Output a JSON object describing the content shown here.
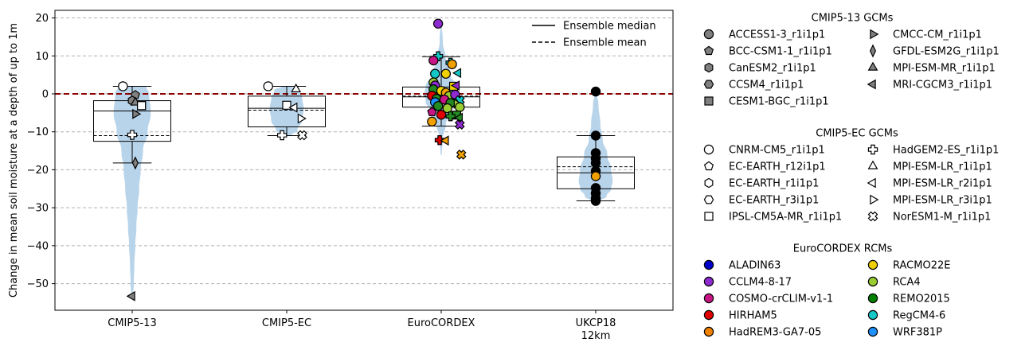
{
  "chart_data": {
    "type": "violin",
    "ylabel": "Change in mean soil moisture at a depth of up to 1m",
    "ylim": [
      -57,
      22
    ],
    "yticks": [
      20,
      10,
      0,
      -10,
      -20,
      -30,
      -40,
      -50
    ],
    "grid": true,
    "zero_line": 0,
    "categories": [
      {
        "label": "CMIP5-13",
        "label2": ""
      },
      {
        "label": "CMIP5-EC",
        "label2": ""
      },
      {
        "label": "EuroCORDEX",
        "label2": ""
      },
      {
        "label": "UKCP18",
        "label2": "12km"
      }
    ],
    "groups": [
      {
        "q1": -12.5,
        "median": -4.5,
        "q3": -1.8,
        "whislo": -18.2,
        "whishi": 2.0,
        "mean": -11.0,
        "violin": [
          [
            2.0,
            0.09
          ],
          [
            0,
            0.11
          ],
          [
            -5,
            0.12
          ],
          [
            -10,
            0.1
          ],
          [
            -15,
            0.07
          ],
          [
            -20,
            0.055
          ],
          [
            -25,
            0.045
          ],
          [
            -30,
            0.035
          ],
          [
            -35,
            0.027
          ],
          [
            -40,
            0.02
          ],
          [
            -45,
            0.014
          ],
          [
            -50,
            0.01
          ],
          [
            -53.5,
            0.005
          ]
        ]
      },
      {
        "q1": -8.7,
        "median": -3.8,
        "q3": -0.6,
        "whislo": -11.0,
        "whishi": 2.0,
        "mean": -4.3,
        "violin": [
          [
            2.0,
            0.03
          ],
          [
            1,
            0.08
          ],
          [
            -1,
            0.1
          ],
          [
            -4,
            0.11
          ],
          [
            -7,
            0.1
          ],
          [
            -9.5,
            0.07
          ],
          [
            -11,
            0.03
          ]
        ]
      },
      {
        "q1": -3.5,
        "median": -0.8,
        "q3": 1.8,
        "whislo": -8.5,
        "whishi": 9.8,
        "mean": -0.6,
        "violin": [
          [
            18.5,
            0.004
          ],
          [
            14,
            0.01
          ],
          [
            9,
            0.03
          ],
          [
            5,
            0.06
          ],
          [
            2,
            0.1
          ],
          [
            0,
            0.11
          ],
          [
            -2,
            0.1
          ],
          [
            -5,
            0.06
          ],
          [
            -8,
            0.03
          ],
          [
            -12,
            0.01
          ],
          [
            -16,
            0.004
          ]
        ]
      },
      {
        "q1": -25.0,
        "median": -20.8,
        "q3": -16.6,
        "whislo": -28.2,
        "whishi": -11.0,
        "mean": -19.2,
        "violin": [
          [
            0.6,
            0.005
          ],
          [
            -3,
            0.018
          ],
          [
            -8,
            0.03
          ],
          [
            -12,
            0.045
          ],
          [
            -16,
            0.075
          ],
          [
            -20,
            0.1
          ],
          [
            -23,
            0.11
          ],
          [
            -25,
            0.1
          ],
          [
            -27,
            0.07
          ],
          [
            -28.2,
            0.03
          ]
        ]
      }
    ],
    "points": [
      {
        "g": 0,
        "x": -0.06,
        "y": 2.0,
        "m": "circle",
        "c": "#ffffff"
      },
      {
        "g": 0,
        "x": 0.02,
        "y": -0.3,
        "m": "pentagon",
        "c": "#808080"
      },
      {
        "g": 0,
        "x": 0.0,
        "y": -1.8,
        "m": "hexagon",
        "c": "#808080"
      },
      {
        "g": 0,
        "x": 0.02,
        "y": -2.3,
        "m": "triangle-up",
        "c": "#808080"
      },
      {
        "g": 0,
        "x": 0.06,
        "y": -3.0,
        "m": "square",
        "c": "#808080"
      },
      {
        "g": 0,
        "x": 0.06,
        "y": -3.1,
        "m": "square",
        "c": "#ffffff"
      },
      {
        "g": 0,
        "x": 0.02,
        "y": -5.3,
        "m": "triangle-right",
        "c": "#808080"
      },
      {
        "g": 0,
        "x": 0.0,
        "y": -10.8,
        "m": "plus",
        "c": "#ffffff"
      },
      {
        "g": 0,
        "x": 0.02,
        "y": -18.2,
        "m": "diamond",
        "c": "#808080"
      },
      {
        "g": 0,
        "x": 0.0,
        "y": -53.3,
        "m": "triangle-left",
        "c": "#808080"
      },
      {
        "g": 1,
        "x": -0.12,
        "y": 2.0,
        "m": "circle",
        "c": "#ffffff"
      },
      {
        "g": 1,
        "x": 0.06,
        "y": 1.2,
        "m": "triangle-up",
        "c": "#ffffff"
      },
      {
        "g": 1,
        "x": 0.0,
        "y": -3.0,
        "m": "square",
        "c": "#ffffff"
      },
      {
        "g": 1,
        "x": 0.05,
        "y": -3.6,
        "m": "triangle-left",
        "c": "#ffffff"
      },
      {
        "g": 1,
        "x": 0.09,
        "y": -6.5,
        "m": "triangle-right",
        "c": "#ffffff"
      },
      {
        "g": 1,
        "x": -0.03,
        "y": -10.9,
        "m": "plus",
        "c": "#ffffff"
      },
      {
        "g": 1,
        "x": 0.1,
        "y": -10.9,
        "m": "cross",
        "c": "#ffffff"
      },
      {
        "g": 2,
        "x": -0.02,
        "y": 18.5,
        "m": "circle",
        "c": "#8e2bd0"
      },
      {
        "g": 2,
        "x": -0.02,
        "y": 9.9,
        "m": "plus",
        "c": "#14c8c8"
      },
      {
        "g": 2,
        "x": -0.05,
        "y": 8.8,
        "m": "circle",
        "c": "#c71585"
      },
      {
        "g": 2,
        "x": 0.06,
        "y": 8.2,
        "m": "plus",
        "c": "#14c8c8"
      },
      {
        "g": 2,
        "x": 0.07,
        "y": 7.8,
        "m": "circle",
        "c": "#f0a000"
      },
      {
        "g": 2,
        "x": 0.11,
        "y": 5.5,
        "m": "triangle-left",
        "c": "#14c8c8"
      },
      {
        "g": 2,
        "x": 0.03,
        "y": 5.3,
        "m": "circle",
        "c": "#f0d000"
      },
      {
        "g": 2,
        "x": -0.04,
        "y": 5.3,
        "m": "circle",
        "c": "#14c8c8"
      },
      {
        "g": 2,
        "x": -0.05,
        "y": 3.0,
        "m": "circle",
        "c": "#9acd32"
      },
      {
        "g": 2,
        "x": -0.04,
        "y": 2.2,
        "m": "circle",
        "c": "#8e2bd0"
      },
      {
        "g": 2,
        "x": 0.08,
        "y": 2.0,
        "m": "square",
        "c": "#f0d000"
      },
      {
        "g": 2,
        "x": 0.1,
        "y": 2.2,
        "m": "triangle-left",
        "c": "#8e2bd0"
      },
      {
        "g": 2,
        "x": -0.05,
        "y": 1.2,
        "m": "circle",
        "c": "#228b22"
      },
      {
        "g": 2,
        "x": 0.0,
        "y": 0.8,
        "m": "circle",
        "c": "#f0d000"
      },
      {
        "g": 2,
        "x": 0.03,
        "y": 0.3,
        "m": "circle",
        "c": "#f0a000"
      },
      {
        "g": 2,
        "x": -0.06,
        "y": -0.5,
        "m": "circle",
        "c": "#e00000"
      },
      {
        "g": 2,
        "x": 0.05,
        "y": -0.6,
        "m": "circle",
        "c": "#9acd32"
      },
      {
        "g": 2,
        "x": 0.09,
        "y": -0.2,
        "m": "circle",
        "c": "#8e2bd0"
      },
      {
        "g": 2,
        "x": -0.03,
        "y": -1.3,
        "m": "circle",
        "c": "#228b22"
      },
      {
        "g": 2,
        "x": 0.02,
        "y": -1.5,
        "m": "circle",
        "c": "#c71585"
      },
      {
        "g": 2,
        "x": 0.12,
        "y": -1.7,
        "m": "cross",
        "c": "#14c8c8"
      },
      {
        "g": 2,
        "x": -0.04,
        "y": -2.2,
        "m": "circle",
        "c": "#1e90ff"
      },
      {
        "g": 2,
        "x": 0.06,
        "y": -2.4,
        "m": "circle",
        "c": "#228b22"
      },
      {
        "g": 2,
        "x": 0.1,
        "y": -2.6,
        "m": "triangle-right",
        "c": "#9acd32"
      },
      {
        "g": 2,
        "x": -0.02,
        "y": -3.2,
        "m": "circle",
        "c": "#228b22"
      },
      {
        "g": 2,
        "x": 0.12,
        "y": -3.5,
        "m": "circle",
        "c": "#9acd32"
      },
      {
        "g": 2,
        "x": 0.04,
        "y": -3.8,
        "m": "circle",
        "c": "#9acd32"
      },
      {
        "g": 2,
        "x": -0.06,
        "y": -4.8,
        "m": "pentagon",
        "c": "#c71585"
      },
      {
        "g": 2,
        "x": 0.0,
        "y": -5.5,
        "m": "circle",
        "c": "#e00000"
      },
      {
        "g": 2,
        "x": 0.1,
        "y": -5.6,
        "m": "square",
        "c": "#228b22"
      },
      {
        "g": 2,
        "x": 0.12,
        "y": -6.3,
        "m": "triangle-left",
        "c": "#228b22"
      },
      {
        "g": 2,
        "x": 0.06,
        "y": -5.9,
        "m": "plus",
        "c": "#228b22"
      },
      {
        "g": 2,
        "x": -0.06,
        "y": -7.3,
        "m": "circle",
        "c": "#f0a000"
      },
      {
        "g": 2,
        "x": 0.12,
        "y": -8.1,
        "m": "cross",
        "c": "#8e2bd0"
      },
      {
        "g": 2,
        "x": -0.01,
        "y": -12.2,
        "m": "plus",
        "c": "#e00000"
      },
      {
        "g": 2,
        "x": 0.03,
        "y": -12.3,
        "m": "triangle-left",
        "c": "#f0a000"
      },
      {
        "g": 2,
        "x": 0.13,
        "y": -16.0,
        "m": "cross",
        "c": "#f0a000"
      },
      {
        "g": 3,
        "x": 0.0,
        "y": 0.6,
        "m": "circle",
        "c": "#000000"
      },
      {
        "g": 3,
        "x": 0.0,
        "y": -11.0,
        "m": "circle",
        "c": "#000000"
      },
      {
        "g": 3,
        "x": 0.0,
        "y": -15.6,
        "m": "circle",
        "c": "#000000"
      },
      {
        "g": 3,
        "x": 0.0,
        "y": -17.0,
        "m": "circle",
        "c": "#000000"
      },
      {
        "g": 3,
        "x": 0.0,
        "y": -18.2,
        "m": "circle",
        "c": "#000000"
      },
      {
        "g": 3,
        "x": 0.0,
        "y": -20.3,
        "m": "circle",
        "c": "#000000"
      },
      {
        "g": 3,
        "x": 0.0,
        "y": -21.7,
        "m": "circle",
        "c": "#f0a000"
      },
      {
        "g": 3,
        "x": 0.0,
        "y": -24.8,
        "m": "circle",
        "c": "#000000"
      },
      {
        "g": 3,
        "x": 0.0,
        "y": -26.2,
        "m": "circle",
        "c": "#000000"
      },
      {
        "g": 3,
        "x": 0.0,
        "y": -27.5,
        "m": "circle",
        "c": "#000000"
      },
      {
        "g": 3,
        "x": 0.0,
        "y": -28.2,
        "m": "circle",
        "c": "#000000"
      }
    ],
    "inner_legend": [
      {
        "label": "Ensemble median",
        "style": "solid"
      },
      {
        "label": "Ensemble mean",
        "style": "dashed"
      }
    ],
    "legend_sections": [
      {
        "title": "CMIP5-13 GCMs",
        "items": [
          {
            "label": "ACCESS1-3_r1i1p1",
            "m": "circle",
            "c": "#808080"
          },
          {
            "label": "BCC-CSM1-1_r1i1p1",
            "m": "pentagon",
            "c": "#808080"
          },
          {
            "label": "CanESM2_r1i1p1",
            "m": "hexagon",
            "c": "#808080"
          },
          {
            "label": "CCSM4_r1i1p1",
            "m": "hexagon2",
            "c": "#808080"
          },
          {
            "label": "CESM1-BGC_r1i1p1",
            "m": "square",
            "c": "#808080"
          },
          {
            "label": "CMCC-CM_r1i1p1",
            "m": "triangle-right",
            "c": "#808080"
          },
          {
            "label": "GFDL-ESM2G_r1i1p1",
            "m": "diamond",
            "c": "#808080"
          },
          {
            "label": "MPI-ESM-MR_r1i1p1",
            "m": "triangle-up",
            "c": "#808080"
          },
          {
            "label": "MRI-CGCM3_r1i1p1",
            "m": "triangle-left",
            "c": "#808080"
          }
        ]
      },
      {
        "title": "CMIP5-EC GCMs",
        "items": [
          {
            "label": "CNRM-CM5_r1i1p1",
            "m": "circle",
            "c": "#ffffff"
          },
          {
            "label": "EC-EARTH_r12i1p1",
            "m": "pentagon",
            "c": "#ffffff"
          },
          {
            "label": "EC-EARTH_r1i1p1",
            "m": "hexagon",
            "c": "#ffffff"
          },
          {
            "label": "EC-EARTH_r3i1p1",
            "m": "hexagon2",
            "c": "#ffffff"
          },
          {
            "label": "IPSL-CM5A-MR_r1i1p1",
            "m": "square",
            "c": "#ffffff"
          },
          {
            "label": "HadGEM2-ES_r1i1p1",
            "m": "plus",
            "c": "#ffffff"
          },
          {
            "label": "MPI-ESM-LR_r1i1p1",
            "m": "triangle-up",
            "c": "#ffffff"
          },
          {
            "label": "MPI-ESM-LR_r2i1p1",
            "m": "triangle-left",
            "c": "#ffffff"
          },
          {
            "label": "MPI-ESM-LR_r3i1p1",
            "m": "triangle-right",
            "c": "#ffffff"
          },
          {
            "label": "NorESM1-M_r1i1p1",
            "m": "cross",
            "c": "#ffffff"
          }
        ]
      },
      {
        "title": "EuroCORDEX RCMs",
        "items": [
          {
            "label": "ALADIN63",
            "m": "circle",
            "c": "#0000cd"
          },
          {
            "label": "CCLM4-8-17",
            "m": "circle",
            "c": "#8e2bd0"
          },
          {
            "label": "COSMO-crCLIM-v1-1",
            "m": "circle",
            "c": "#c71585"
          },
          {
            "label": "HIRHAM5",
            "m": "circle",
            "c": "#e00000"
          },
          {
            "label": "HadREM3-GA7-05",
            "m": "circle",
            "c": "#f08000"
          },
          {
            "label": "RACMO22E",
            "m": "circle",
            "c": "#f0d000"
          },
          {
            "label": "RCA4",
            "m": "circle",
            "c": "#9acd32"
          },
          {
            "label": "REMO2015",
            "m": "circle",
            "c": "#008000"
          },
          {
            "label": "RegCM4-6",
            "m": "circle",
            "c": "#14c8c8"
          },
          {
            "label": "WRF381P",
            "m": "circle",
            "c": "#1e90ff"
          }
        ]
      }
    ],
    "colors": {
      "violin": "#b8d4ea",
      "zero_line": "#8b0000",
      "grid": "#b0b0b0"
    }
  }
}
